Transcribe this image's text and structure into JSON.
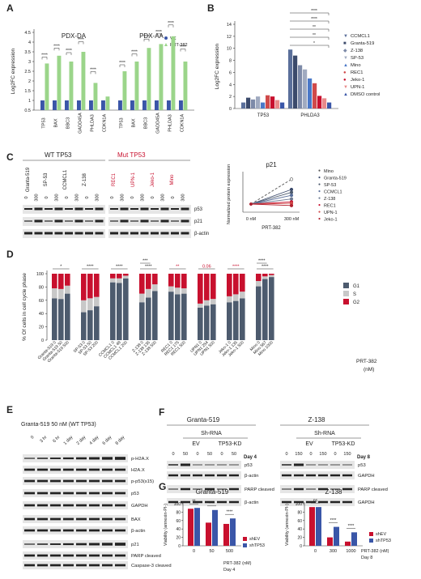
{
  "panel_labels": [
    "A",
    "B",
    "C",
    "D",
    "E",
    "F",
    "G"
  ],
  "colors": {
    "vc": "#3a56a8",
    "prt": "#9bd58a",
    "g1": "#4d5b6e",
    "s": "#c8c8c8",
    "g2": "#c8102e",
    "red_label": "#c8102e",
    "wt_label": "#222222",
    "gel_bg": "#e6e6e6",
    "band": "#222222"
  },
  "chart_data": [
    {
      "id": "A",
      "type": "bar",
      "ylabel": "Log2FC expression",
      "yticks": [
        "0.5",
        "1",
        "1.5",
        "2",
        "2.5",
        "3",
        "3.5",
        "4",
        "4.5"
      ],
      "ylim": [
        0.5,
        4.5
      ],
      "legend": [
        "VC",
        "PRT-382"
      ],
      "groups": [
        {
          "title": "PDX-DA",
          "categories": [
            "TP53",
            "BAX",
            "BBC3",
            "GADD45A",
            "PHLDA3",
            "CDKN1A"
          ],
          "series": [
            {
              "name": "VC",
              "values": [
                1,
                1,
                1,
                1,
                1,
                1
              ]
            },
            {
              "name": "PRT-382",
              "values": [
                2.9,
                3.3,
                3.0,
                3.5,
                1.9,
                1.2
              ]
            }
          ],
          "stars": [
            "****",
            "****",
            "****",
            "****",
            "****",
            ""
          ]
        },
        {
          "title": "PDX-AA",
          "categories": [
            "TP53",
            "BAX",
            "BBC3",
            "GADD45A",
            "PHLDA3",
            "CDKN1A"
          ],
          "series": [
            {
              "name": "VC",
              "values": [
                1,
                1,
                1,
                1,
                1,
                1
              ]
            },
            {
              "name": "PRT-382",
              "values": [
                2.5,
                3.0,
                3.7,
                3.9,
                4.3,
                3.0
              ]
            }
          ],
          "stars": [
            "****",
            "****",
            "****",
            "****",
            "****",
            "****"
          ]
        }
      ]
    },
    {
      "id": "B",
      "type": "bar",
      "ylabel": "Log2FC expression",
      "yticks": [
        "0",
        "2",
        "4",
        "6",
        "8",
        "10",
        "12",
        "14"
      ],
      "ylim": [
        0,
        14
      ],
      "categories": [
        "TP53",
        "PHLDA3"
      ],
      "series": [
        {
          "name": "CCMCL1",
          "values": [
            1.0,
            9.8
          ]
        },
        {
          "name": "Granta-519",
          "values": [
            1.8,
            8.8
          ]
        },
        {
          "name": "Z-138",
          "values": [
            1.5,
            7.2
          ]
        },
        {
          "name": "SP-53",
          "values": [
            2.0,
            6.5
          ]
        },
        {
          "name": "Mino",
          "values": [
            1.0,
            5.0
          ]
        },
        {
          "name": "REC1",
          "values": [
            2.2,
            4.2
          ]
        },
        {
          "name": "Jeko-1",
          "values": [
            2.0,
            2.1
          ]
        },
        {
          "name": "UPN-1",
          "values": [
            1.4,
            1.7
          ]
        },
        {
          "name": "DMSO control",
          "values": [
            1.0,
            1.0
          ]
        }
      ],
      "stars": [
        "****",
        "****",
        "**",
        "**",
        "*"
      ]
    },
    {
      "id": "C-line",
      "type": "line",
      "title": "p21",
      "ylabel": "Normalized protein expression",
      "x": [
        "0 nM",
        "300 nM"
      ],
      "xlabel": "PRT-382",
      "series": [
        {
          "name": "Mino",
          "values": [
            1,
            4.4
          ]
        },
        {
          "name": "Granta-519",
          "values": [
            1,
            3.0
          ]
        },
        {
          "name": "SP-53",
          "values": [
            1,
            2.6
          ]
        },
        {
          "name": "CCMCL1",
          "values": [
            1,
            2.2
          ]
        },
        {
          "name": "Z-138",
          "values": [
            1,
            1.7
          ]
        },
        {
          "name": "REC1",
          "values": [
            1,
            1.3
          ]
        },
        {
          "name": "UPN-1",
          "values": [
            1,
            1.1
          ]
        },
        {
          "name": "Jeko-1",
          "values": [
            1,
            0.8
          ]
        }
      ]
    },
    {
      "id": "D",
      "type": "bar",
      "ylabel": "% Of cells in cell cycle phase",
      "yticks": [
        "0",
        "20",
        "40",
        "60",
        "80",
        "100"
      ],
      "legend": [
        "G1",
        "S",
        "G2"
      ],
      "side_label": "PRT-382 (nM)",
      "categories": [
        "Granta-519 0",
        "Granta-519 50",
        "Granta-519 500",
        "SP-53 0",
        "SP-53 50",
        "SP-53 200",
        "CCMCL1 0",
        "CCMCL1 48",
        "CCMCL1 200",
        "Z-138 0",
        "Z-138 135",
        "Z-138 500",
        "REC1 0",
        "REC1 175",
        "REC1 500",
        "UPN1 0",
        "UPN1 254",
        "UPN1 500",
        "Jeko-1 0",
        "Jeko-1 135",
        "Jeko-1 500",
        "Mino 0",
        "Mino 567",
        "Mino 1000"
      ],
      "groupsize": 3,
      "series": [
        {
          "name": "G1",
          "values": [
            63,
            62,
            70,
            42,
            45,
            51,
            87,
            86,
            93,
            57,
            64,
            74,
            73,
            69,
            70,
            49,
            52,
            54,
            57,
            59,
            63,
            81,
            92,
            95
          ]
        },
        {
          "name": "S",
          "values": [
            15,
            15,
            12,
            18,
            18,
            14,
            6,
            7,
            4,
            13,
            13,
            10,
            8,
            10,
            8,
            6,
            8,
            8,
            9,
            10,
            10,
            8,
            4,
            3
          ]
        },
        {
          "name": "G2",
          "values": [
            22,
            23,
            18,
            40,
            37,
            35,
            7,
            7,
            3,
            30,
            23,
            16,
            19,
            21,
            22,
            45,
            40,
            38,
            34,
            31,
            27,
            11,
            4,
            2
          ]
        }
      ],
      "sig": [
        {
          "a": 0,
          "b": 2,
          "t": "*",
          "red": false
        },
        {
          "a": 3,
          "b": 5,
          "t": "****",
          "red": false
        },
        {
          "a": 6,
          "b": 8,
          "t": "****",
          "red": false
        },
        {
          "a": 9,
          "b": 10,
          "t": "***",
          "red": false
        },
        {
          "a": 9,
          "b": 11,
          "t": "****",
          "red": false
        },
        {
          "a": 12,
          "b": 14,
          "t": "**",
          "red": true
        },
        {
          "a": 15,
          "b": 17,
          "t": "0.06",
          "red": true
        },
        {
          "a": 18,
          "b": 20,
          "t": "****",
          "red": true
        },
        {
          "a": 21,
          "b": 22,
          "t": "****",
          "red": false
        },
        {
          "a": 21,
          "b": 23,
          "t": "****",
          "red": false
        }
      ]
    },
    {
      "id": "G1",
      "type": "bar",
      "title": "Granta-519",
      "ylabel": "Viability (annexin-PI-)",
      "yticks": [
        "0",
        "20",
        "40",
        "60",
        "80",
        "100"
      ],
      "ylim": [
        0,
        100
      ],
      "categories": [
        "0",
        "50",
        "500"
      ],
      "series": [
        {
          "name": "shEV",
          "values": [
            88,
            55,
            52
          ]
        },
        {
          "name": "shTP53",
          "values": [
            90,
            85,
            65
          ]
        }
      ],
      "stars": [
        "**",
        "****",
        "****"
      ],
      "footer": [
        "PRT-382 (nM)",
        "Day 4"
      ]
    },
    {
      "id": "G2",
      "type": "bar",
      "title": "Z-138",
      "ylabel": "Viability (annexin-PI-)",
      "yticks": [
        "0",
        "20",
        "40",
        "60",
        "80",
        "100"
      ],
      "ylim": [
        0,
        100
      ],
      "categories": [
        "0",
        "300",
        "1000"
      ],
      "series": [
        {
          "name": "shEV",
          "values": [
            92,
            20,
            10
          ]
        },
        {
          "name": "shTP53",
          "values": [
            92,
            45,
            32
          ]
        }
      ],
      "stars": [
        "ns",
        "****",
        "****"
      ],
      "footer": [
        "PRT-382 (nM)",
        "Day 8"
      ]
    }
  ],
  "panel_c": {
    "wt_title": "WT TP53",
    "mut_title": "Mut TP53",
    "wt_lines": [
      "Granta-519",
      "SP-53",
      "CCMCL1",
      "Z-138"
    ],
    "mut_lines": [
      "REC1",
      "UPN-1",
      "Jeko-1",
      "Mino"
    ],
    "doses": [
      "0",
      "300",
      "0",
      "300",
      "0",
      "300",
      "0",
      "300",
      "0",
      "300",
      "0",
      "300",
      "0",
      "300",
      "0",
      "300"
    ],
    "blot_labels": [
      "p53",
      "p21",
      "β-actin"
    ]
  },
  "panel_e": {
    "title": "Granta-519 50 nM (WT TP53)",
    "timepoints": [
      "0",
      "3 hr",
      "6 hr",
      "1 day",
      "2 day",
      "4 day",
      "6 day",
      "8 day"
    ],
    "blot_labels": [
      "p-H2A.X",
      "H2A.X",
      "p-p53(s15)",
      "p53",
      "GAPDH",
      "BAX",
      "β-actin",
      "p21",
      "PARP cleaved",
      "Caspase-3 cleaved",
      "β-actin"
    ]
  },
  "panel_f": {
    "left_title": "Granta-519",
    "right_title": "Z-138",
    "shrna": "Sh-RNA",
    "ev": "EV",
    "kd": "TP53-KD",
    "left_doses": [
      "0",
      "50",
      "0",
      "50",
      "0",
      "50"
    ],
    "right_doses": [
      "0",
      "150",
      "0",
      "150",
      "0",
      "150"
    ],
    "left_day": "Day 4",
    "right_day": "Day 8",
    "left_labels": [
      "p53",
      "β-actin",
      "PARP cleaved",
      "β-actin"
    ],
    "right_labels": [
      "p53",
      "GAPDH",
      "PARP cleaved",
      "GAPDH"
    ]
  }
}
